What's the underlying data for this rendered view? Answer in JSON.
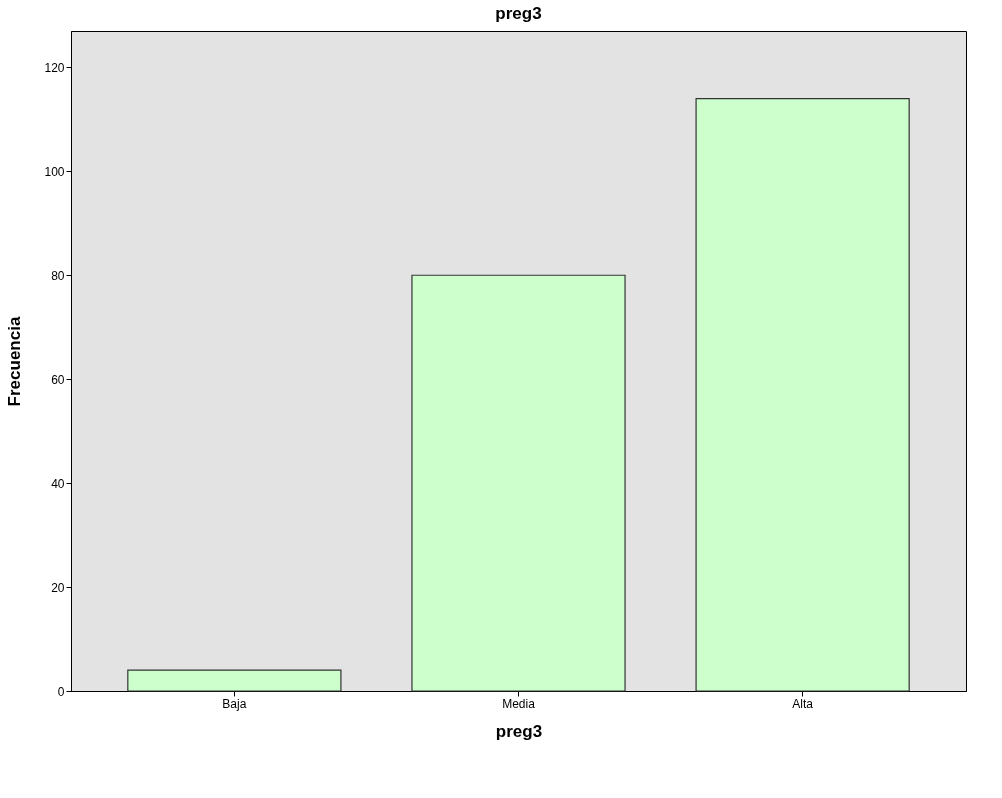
{
  "chart_data": {
    "type": "bar",
    "title": "preg3",
    "xlabel": "preg3",
    "ylabel": "Frecuencia",
    "categories": [
      "Baja",
      "Media",
      "Alta"
    ],
    "series": [
      {
        "color": "#ccffcc",
        "values": [
          4,
          80,
          114
        ]
      }
    ],
    "ylim": [
      0,
      127
    ],
    "yticks": [
      0,
      20,
      40,
      60,
      80,
      100,
      120
    ],
    "grid": false
  }
}
